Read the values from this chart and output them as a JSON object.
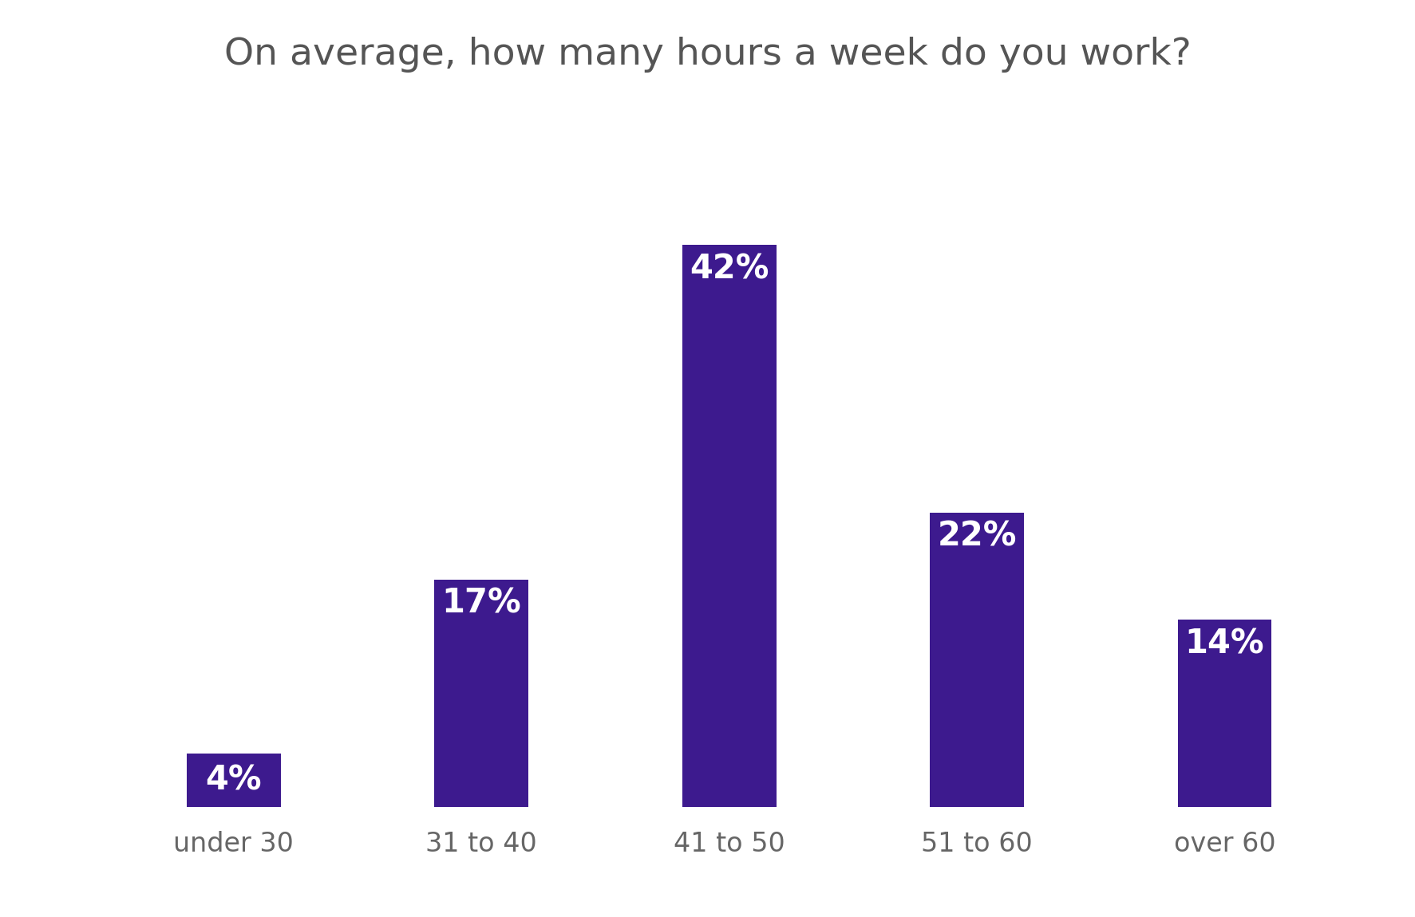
{
  "title": "On average, how many hours a week do you work?",
  "categories": [
    "under 30",
    "31 to 40",
    "41 to 50",
    "51 to 60",
    "over 60"
  ],
  "values": [
    4,
    17,
    42,
    22,
    14
  ],
  "labels": [
    "4%",
    "17%",
    "42%",
    "22%",
    "14%"
  ],
  "bar_color": "#3d1a8e",
  "label_color": "#ffffff",
  "title_color": "#555555",
  "background_color": "#ffffff",
  "title_fontsize": 34,
  "label_fontsize": 30,
  "tick_fontsize": 24,
  "bar_width": 0.38,
  "ylim": [
    0,
    50
  ]
}
